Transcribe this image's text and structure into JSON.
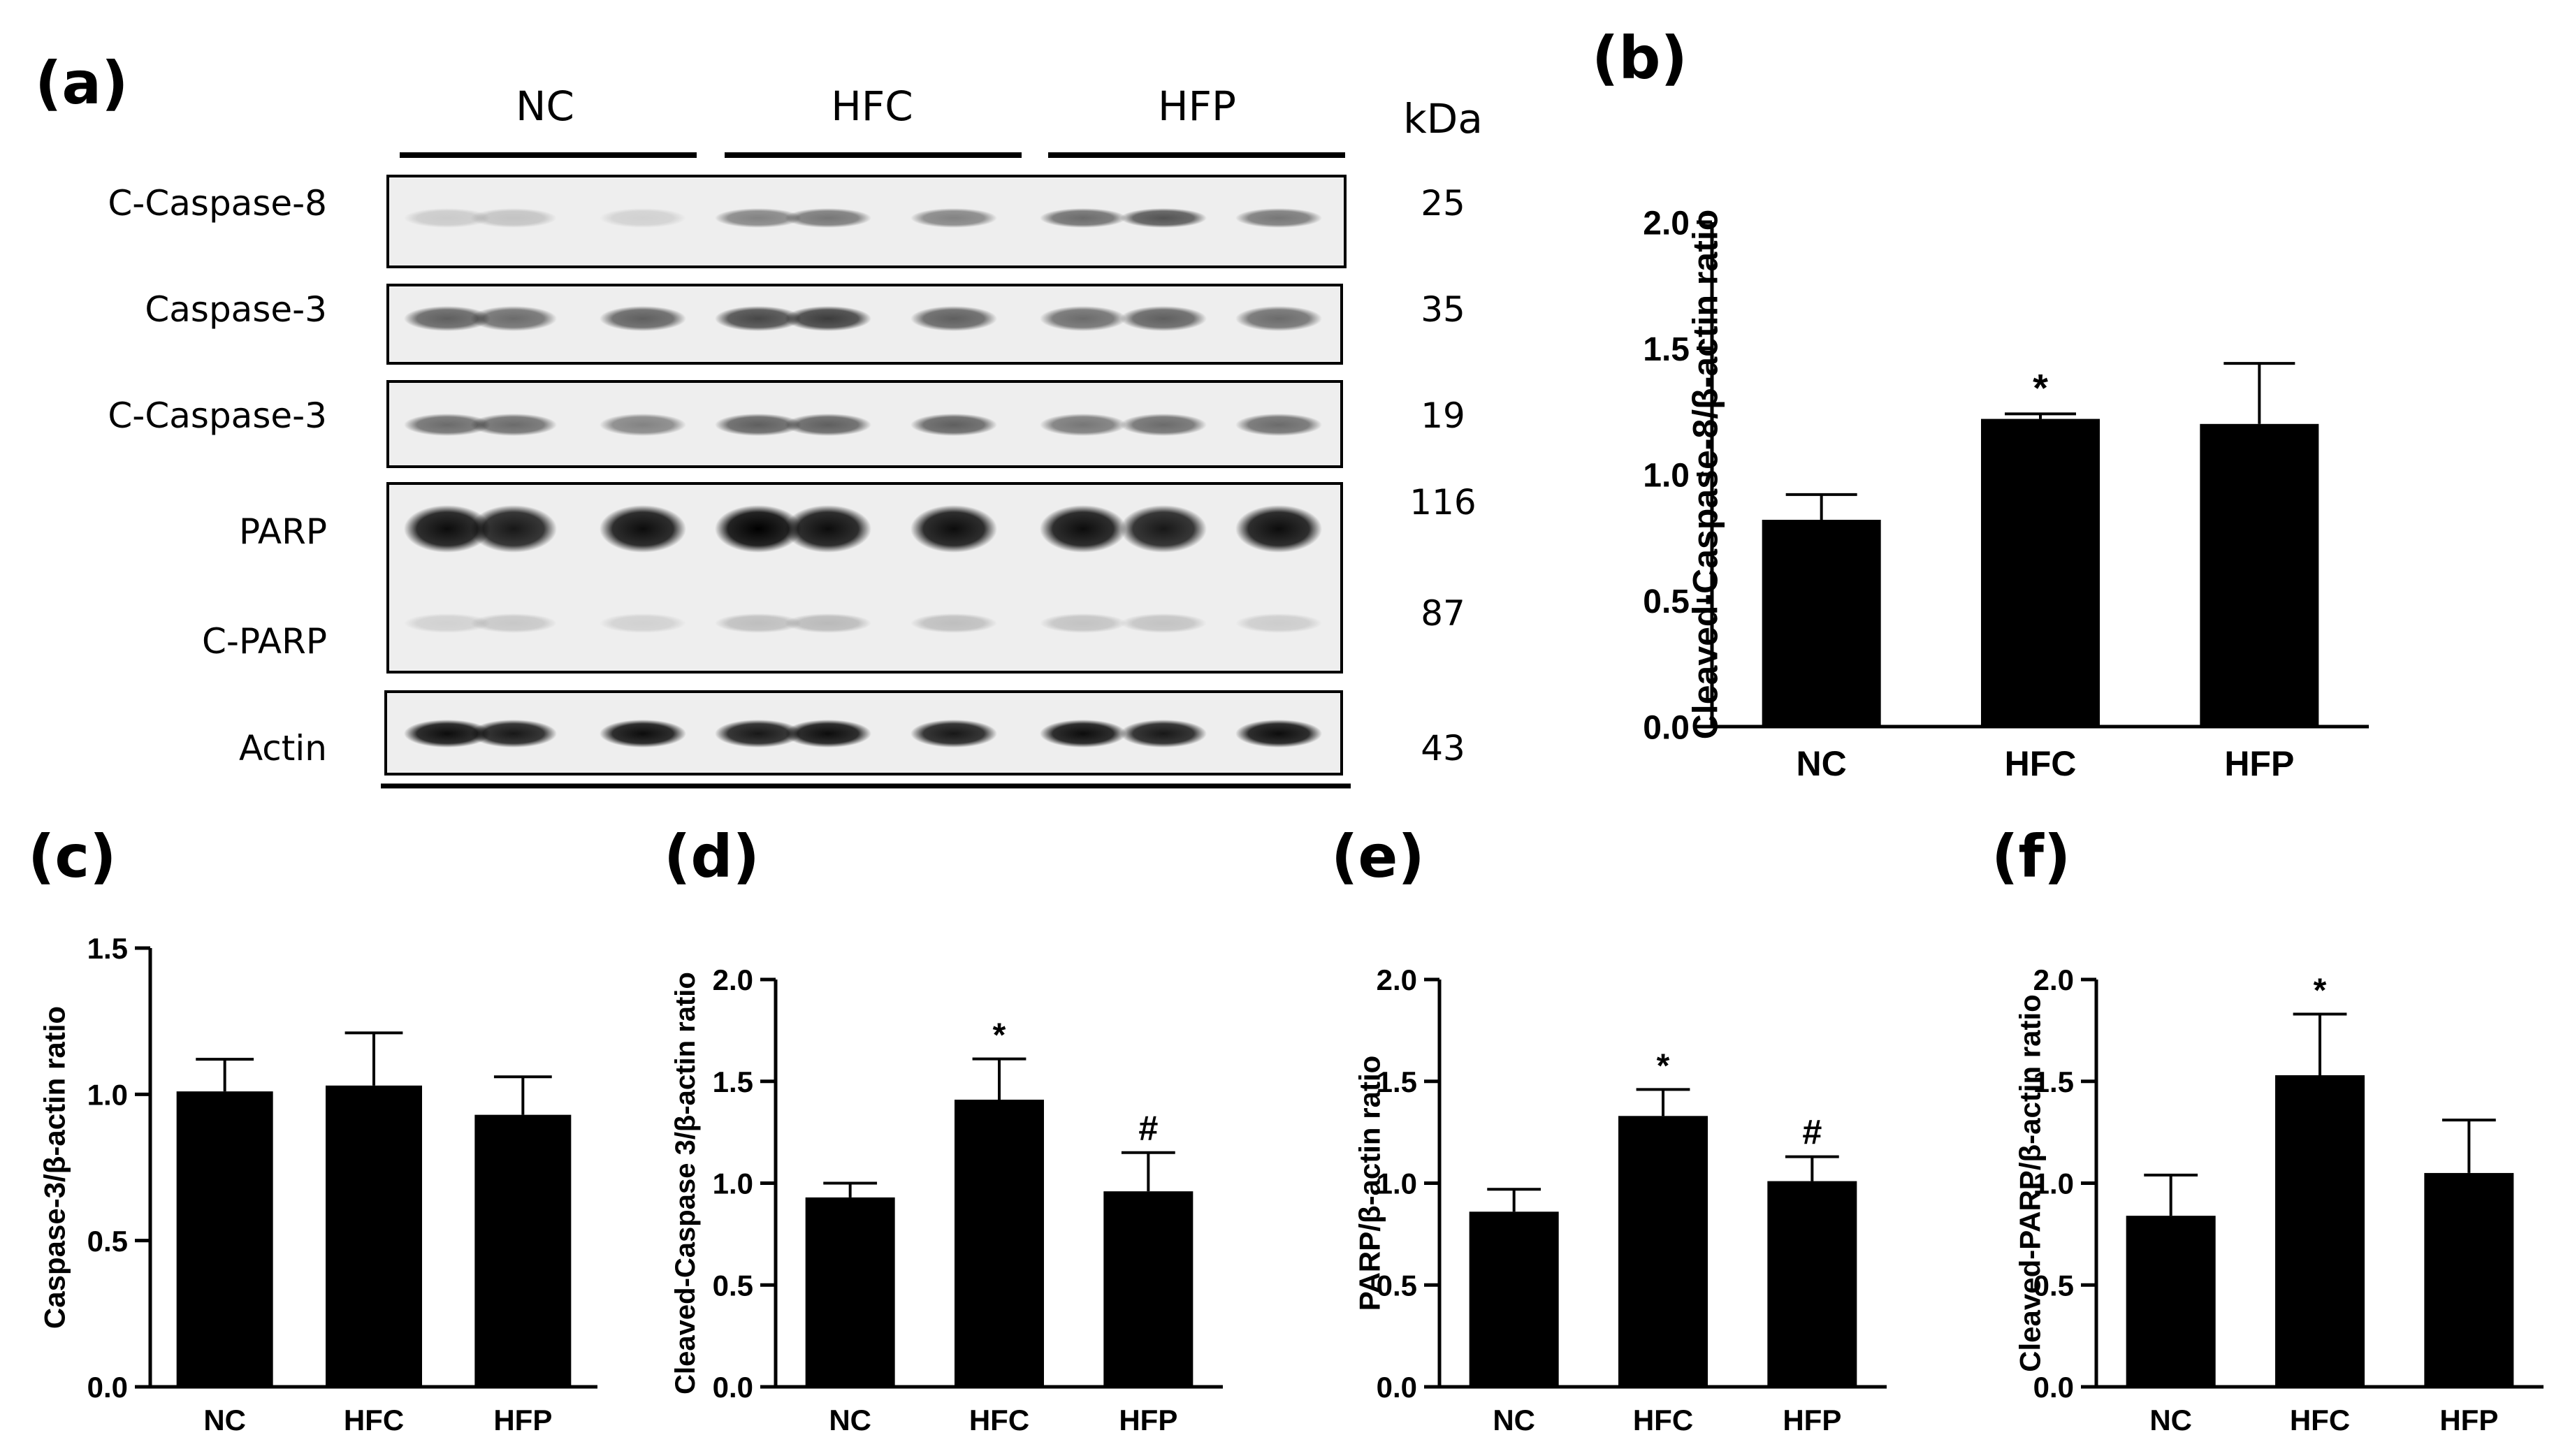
{
  "panel_labels": [
    "(a)",
    "(b)",
    "(c)",
    "(d)",
    "(e)",
    "(f)"
  ],
  "blot": {
    "groups": [
      "NC",
      "HFC",
      "HFP"
    ],
    "kda_header": "kDa",
    "rows": [
      {
        "label": "C-Caspase-8",
        "kda": "25"
      },
      {
        "label": "Caspase-3",
        "kda": "35"
      },
      {
        "label": "C-Caspase-3",
        "kda": "19"
      },
      {
        "label": "PARP",
        "kda": "116"
      },
      {
        "label": "C-PARP",
        "kda": "87"
      },
      {
        "label": "Actin",
        "kda": "43"
      }
    ]
  },
  "chart_data": [
    {
      "panel": "(b)",
      "type": "bar",
      "categories": [
        "NC",
        "HFC",
        "HFP"
      ],
      "values": [
        0.82,
        1.22,
        1.2
      ],
      "errors": [
        0.1,
        0.02,
        0.24
      ],
      "annotations": [
        "",
        "*",
        ""
      ],
      "ylabel": "Cleaved-Caspase-8/β-actin ratio",
      "ylim": [
        0,
        2.0
      ],
      "yticks": [
        "0.0",
        "0.5",
        "1.0",
        "1.5",
        "2.0"
      ],
      "title": "",
      "xlabel": "",
      "grid": false
    },
    {
      "panel": "(c)",
      "type": "bar",
      "categories": [
        "NC",
        "HFC",
        "HFP"
      ],
      "values": [
        1.01,
        1.03,
        0.93
      ],
      "errors": [
        0.11,
        0.18,
        0.13
      ],
      "annotations": [
        "",
        "",
        ""
      ],
      "ylabel": "Caspase-3/β-actin ratio",
      "ylim": [
        0,
        1.5
      ],
      "yticks": [
        "0.0",
        "0.5",
        "1.0",
        "1.5"
      ],
      "title": "",
      "xlabel": "",
      "grid": false
    },
    {
      "panel": "(d)",
      "type": "bar",
      "categories": [
        "NC",
        "HFC",
        "HFP"
      ],
      "values": [
        0.93,
        1.41,
        0.96
      ],
      "errors": [
        0.07,
        0.2,
        0.19
      ],
      "annotations": [
        "",
        "*",
        "#"
      ],
      "ylabel": "Cleaved-Caspase 3/β-actin ratio",
      "ylim": [
        0,
        2.0
      ],
      "yticks": [
        "0.0",
        "0.5",
        "1.0",
        "1.5",
        "2.0"
      ],
      "title": "",
      "xlabel": "",
      "grid": false
    },
    {
      "panel": "(e)",
      "type": "bar",
      "categories": [
        "NC",
        "HFC",
        "HFP"
      ],
      "values": [
        0.86,
        1.33,
        1.01
      ],
      "errors": [
        0.11,
        0.13,
        0.12
      ],
      "annotations": [
        "",
        "*",
        "#"
      ],
      "ylabel": "PARP/β-actin ratio",
      "ylim": [
        0,
        2.0
      ],
      "yticks": [
        "0.0",
        "0.5",
        "1.0",
        "1.5",
        "2.0"
      ],
      "title": "",
      "xlabel": "",
      "grid": false
    },
    {
      "panel": "(f)",
      "type": "bar",
      "categories": [
        "NC",
        "HFC",
        "HFP"
      ],
      "values": [
        0.84,
        1.53,
        1.05
      ],
      "errors": [
        0.2,
        0.3,
        0.26
      ],
      "annotations": [
        "",
        "*",
        ""
      ],
      "ylabel": "Cleaved-PARP/β-actin ratio",
      "ylim": [
        0,
        2.0
      ],
      "yticks": [
        "0.0",
        "0.5",
        "1.0",
        "1.5",
        "2.0"
      ],
      "title": "",
      "xlabel": "",
      "grid": false
    }
  ]
}
